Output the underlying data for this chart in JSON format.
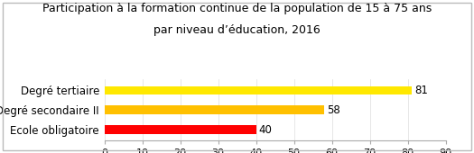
{
  "title_line1": "Participation à la formation continue de la population de 15 à 75 ans",
  "title_line2": "par niveau d’éducation, 2016",
  "categories": [
    "Degré tertiaire",
    "Degré secondaire II",
    "Ecole obligatoire"
  ],
  "values": [
    81,
    58,
    40
  ],
  "bar_colors": [
    "#FFE800",
    "#FFC000",
    "#FF0000"
  ],
  "xlim": [
    0,
    90
  ],
  "xticks": [
    0,
    10,
    20,
    30,
    40,
    50,
    60,
    70,
    80,
    90
  ],
  "title_fontsize": 9.0,
  "label_fontsize": 8.5,
  "tick_fontsize": 8.0,
  "value_fontsize": 8.5,
  "background_color": "#ffffff",
  "border_color": "#bbbbbb"
}
